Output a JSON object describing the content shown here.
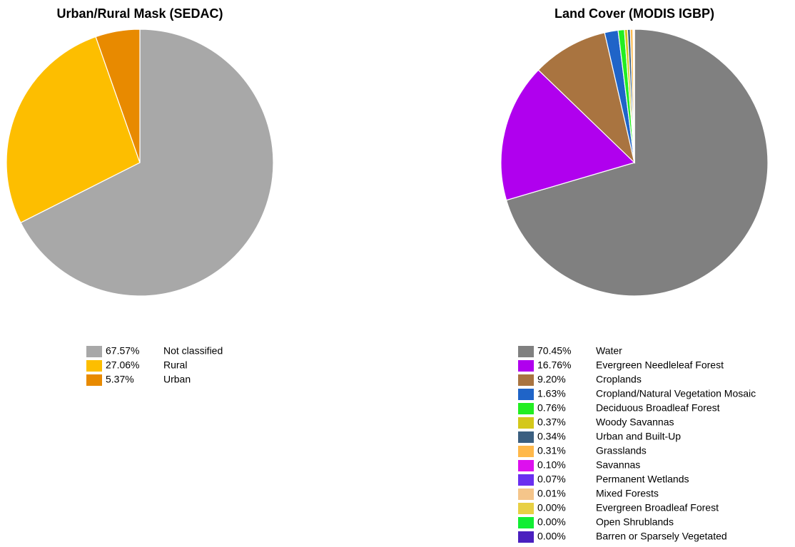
{
  "chart_data": [
    {
      "type": "pie",
      "title": "Urban/Rural Mask (SEDAC)",
      "categories": [
        "Not classified",
        "Rural",
        "Urban"
      ],
      "values": [
        67.57,
        27.06,
        5.37
      ],
      "value_labels": [
        "67.57%",
        "27.06%",
        "5.37%"
      ],
      "colors": [
        "#a8a8a8",
        "#fdbe00",
        "#e88a00"
      ]
    },
    {
      "type": "pie",
      "title": "Land Cover (MODIS IGBP)",
      "categories": [
        "Water",
        "Evergreen Needleleaf Forest",
        "Croplands",
        "Cropland/Natural Vegetation Mosaic",
        "Deciduous Broadleaf Forest",
        "Woody Savannas",
        "Urban and Built-Up",
        "Grasslands",
        "Savannas",
        "Permanent Wetlands",
        "Mixed Forests",
        "Evergreen Broadleaf Forest",
        "Open Shrublands",
        "Barren or Sparsely Vegetated"
      ],
      "values": [
        70.45,
        16.76,
        9.2,
        1.63,
        0.76,
        0.37,
        0.34,
        0.31,
        0.1,
        0.07,
        0.01,
        0.0,
        0.0,
        0.0
      ],
      "value_labels": [
        "70.45%",
        "16.76%",
        "9.20%",
        "1.63%",
        "0.76%",
        "0.37%",
        "0.34%",
        "0.31%",
        "0.10%",
        "0.07%",
        "0.01%",
        "0.00%",
        "0.00%",
        "0.00%"
      ],
      "colors": [
        "#808080",
        "#b000ee",
        "#a97440",
        "#1f64c8",
        "#22ee22",
        "#d4c81a",
        "#3b5f80",
        "#ffb84a",
        "#dd10ee",
        "#6a2ff0",
        "#f5c58a",
        "#e8d044",
        "#11ee33",
        "#4a1fbf"
      ]
    }
  ]
}
